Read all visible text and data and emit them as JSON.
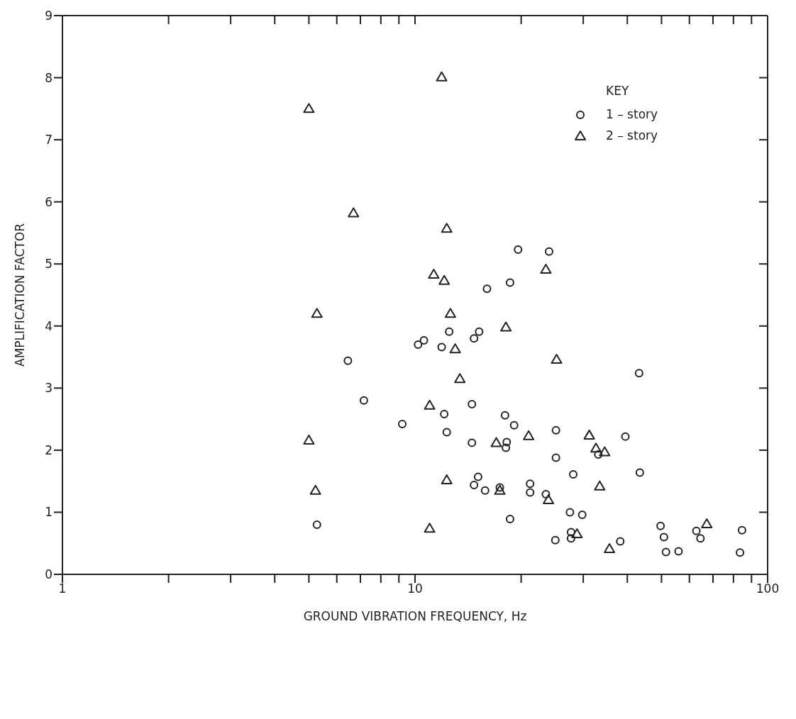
{
  "chart_data": {
    "type": "scatter",
    "xlabel": "GROUND VIBRATION FREQUENCY, Hz",
    "ylabel": "AMPLIFICATION FACTOR",
    "legend_title": "KEY",
    "legend": "top right",
    "log": "x",
    "xlim": [
      1,
      100
    ],
    "xticks": [
      1,
      {
        "value": 2,
        "label": null
      },
      {
        "value": 3,
        "label": null
      },
      {
        "value": 4,
        "label": null
      },
      {
        "value": 5,
        "label": null
      },
      {
        "value": 6,
        "label": null
      },
      {
        "value": 7,
        "label": null
      },
      {
        "value": 8,
        "label": null
      },
      {
        "value": 9,
        "label": null
      },
      10,
      {
        "value": 20,
        "label": null
      },
      {
        "value": 30,
        "label": null
      },
      {
        "value": 40,
        "label": null
      },
      {
        "value": 50,
        "label": null
      },
      {
        "value": 60,
        "label": null
      },
      {
        "value": 70,
        "label": null
      },
      {
        "value": 80,
        "label": null
      },
      {
        "value": 90,
        "label": null
      },
      100
    ],
    "ylim": [
      0,
      9
    ],
    "yticks": [
      0,
      1,
      2,
      3,
      4,
      5,
      6,
      7,
      8,
      9
    ],
    "series": [
      {
        "name": "1 – story",
        "color": "#222222",
        "marker": "circle",
        "x": [
          19.6,
          24.0,
          16.0,
          18.6,
          6.45,
          7.16,
          9.2,
          5.27,
          10.2,
          10.6,
          12.5,
          11.9,
          14.7,
          15.2,
          43.2,
          14.5,
          12.1,
          18.0,
          19.1,
          12.3,
          25.1,
          39.5,
          14.5,
          18.2,
          18.1,
          25.1,
          33.1,
          43.4,
          28.1,
          15.1,
          14.7,
          15.8,
          17.4,
          21.2,
          21.2,
          23.5,
          18.6,
          27.5,
          29.8,
          25.0,
          27.7,
          27.7,
          38.2,
          49.7,
          50.8,
          51.5,
          55.9,
          62.8,
          64.5,
          84.6,
          83.5
        ],
        "values": [
          5.23,
          5.2,
          4.6,
          4.7,
          3.44,
          2.8,
          2.42,
          0.8,
          3.7,
          3.77,
          3.91,
          3.66,
          3.8,
          3.91,
          3.24,
          2.74,
          2.58,
          2.56,
          2.4,
          2.29,
          2.32,
          2.22,
          2.12,
          2.13,
          2.04,
          1.88,
          1.93,
          1.64,
          1.61,
          1.57,
          1.44,
          1.35,
          1.4,
          1.46,
          1.32,
          1.29,
          0.89,
          1.0,
          0.96,
          0.55,
          0.68,
          0.58,
          0.53,
          0.78,
          0.6,
          0.36,
          0.37,
          0.7,
          0.58,
          0.71,
          0.35
        ]
      },
      {
        "name": "2 – story",
        "color": "#222222",
        "marker": "triangle",
        "x": [
          5.0,
          11.9,
          6.69,
          12.3,
          5.27,
          11.3,
          12.1,
          12.6,
          18.1,
          13.0,
          25.2,
          23.5,
          13.4,
          11.0,
          5.0,
          5.22,
          12.3,
          11.0,
          17.0,
          17.4,
          21.0,
          31.2,
          32.6,
          34.5,
          33.4,
          23.9,
          28.8,
          35.6,
          67.2
        ],
        "values": [
          7.5,
          8.01,
          5.82,
          5.57,
          4.2,
          4.83,
          4.73,
          4.2,
          3.98,
          3.63,
          3.46,
          4.91,
          3.15,
          2.72,
          2.16,
          1.35,
          1.52,
          0.74,
          2.12,
          1.35,
          2.23,
          2.24,
          2.03,
          1.97,
          1.42,
          1.2,
          0.65,
          0.41,
          0.81
        ]
      }
    ]
  }
}
